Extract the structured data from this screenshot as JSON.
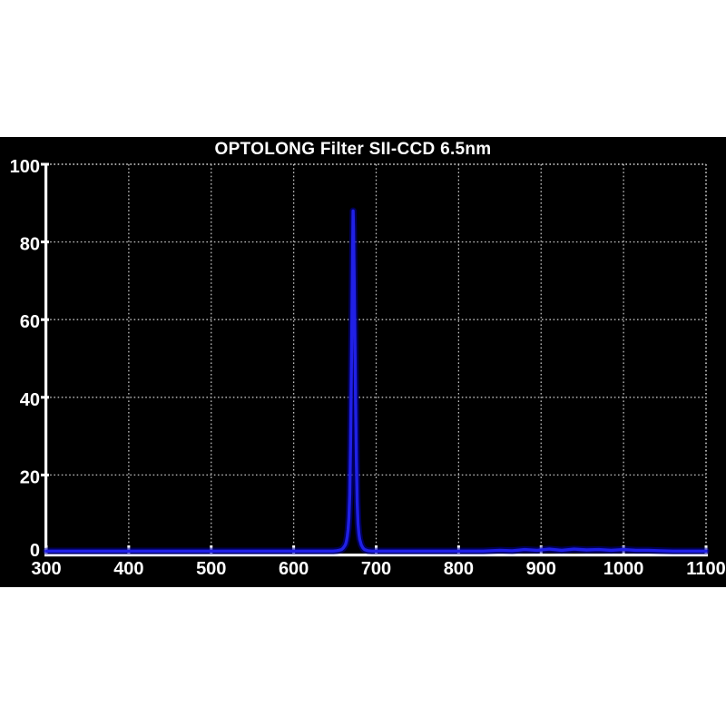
{
  "page": {
    "background_color": "#ffffff",
    "panel_background_color": "#000000"
  },
  "chart_data": {
    "type": "line",
    "title": "OPTOLONG Filter SII-CCD 6.5nm",
    "xlabel": "",
    "ylabel": "",
    "xlim": [
      300,
      1100
    ],
    "ylim": [
      0,
      100
    ],
    "x_ticks": [
      300,
      400,
      500,
      600,
      700,
      800,
      900,
      1000,
      1100
    ],
    "y_ticks": [
      0,
      20,
      40,
      60,
      80,
      100
    ],
    "grid": true,
    "grid_style": "dotted",
    "legend": false,
    "peak": {
      "center_nm": 672,
      "max_transmission_pct": 88,
      "fwhm_nm": 6.5
    },
    "colors": {
      "curve": "#2020e6",
      "curve_glow": "#0000a0",
      "grid": "#c0c0c0",
      "axis": "#ffffff",
      "text": "#ffffff",
      "panel": "#000000"
    },
    "series": [
      {
        "points": [
          [
            300,
            0.4
          ],
          [
            350,
            0.4
          ],
          [
            400,
            0.4
          ],
          [
            450,
            0.4
          ],
          [
            500,
            0.4
          ],
          [
            550,
            0.4
          ],
          [
            600,
            0.4
          ],
          [
            630,
            0.4
          ],
          [
            648,
            0.4
          ],
          [
            652,
            0.5
          ],
          [
            655,
            0.6
          ],
          [
            658,
            0.8
          ],
          [
            660,
            1.2
          ],
          [
            662,
            1.8
          ],
          [
            663,
            2.2
          ],
          [
            664,
            3.0
          ],
          [
            665,
            4.2
          ],
          [
            666,
            6.0
          ],
          [
            667,
            9.0
          ],
          [
            668,
            15.0
          ],
          [
            669,
            28.0
          ],
          [
            670,
            47.0
          ],
          [
            671,
            67.0
          ],
          [
            671.5,
            78.0
          ],
          [
            672,
            88.0
          ],
          [
            672.5,
            84.0
          ],
          [
            673,
            75.0
          ],
          [
            674,
            58.0
          ],
          [
            675,
            40.0
          ],
          [
            676,
            24.0
          ],
          [
            677,
            13.0
          ],
          [
            678,
            7.5
          ],
          [
            679,
            5.0
          ],
          [
            680,
            3.5
          ],
          [
            682,
            2.0
          ],
          [
            684,
            1.2
          ],
          [
            686,
            0.8
          ],
          [
            690,
            0.5
          ],
          [
            695,
            0.4
          ],
          [
            700,
            0.4
          ],
          [
            750,
            0.4
          ],
          [
            800,
            0.4
          ],
          [
            830,
            0.4
          ],
          [
            850,
            0.6
          ],
          [
            865,
            0.5
          ],
          [
            880,
            0.8
          ],
          [
            895,
            0.6
          ],
          [
            910,
            0.9
          ],
          [
            925,
            0.6
          ],
          [
            940,
            0.9
          ],
          [
            955,
            0.7
          ],
          [
            970,
            0.8
          ],
          [
            985,
            0.6
          ],
          [
            1000,
            0.8
          ],
          [
            1015,
            0.6
          ],
          [
            1030,
            0.6
          ],
          [
            1045,
            0.5
          ],
          [
            1060,
            0.4
          ],
          [
            1080,
            0.4
          ],
          [
            1100,
            0.4
          ]
        ]
      }
    ]
  }
}
